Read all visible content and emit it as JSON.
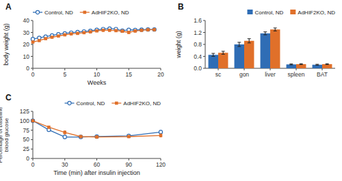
{
  "chart_data": [
    {
      "type": "line",
      "title": "A",
      "xlabel": "Weeks",
      "ylabel": "body weight (g)",
      "x": [
        0,
        1,
        2,
        3,
        4,
        5,
        6,
        7,
        8,
        9,
        10,
        11,
        12,
        13,
        14,
        15,
        16,
        17,
        18,
        19
      ],
      "xlim": [
        0,
        20
      ],
      "ylim": [
        0,
        40
      ],
      "xticks": [
        0,
        5,
        10,
        15,
        20
      ],
      "yticks": [
        0,
        10,
        20,
        30,
        40
      ],
      "grid": false,
      "legend": "upper left",
      "series": [
        {
          "name": "Control, ND",
          "marker": "circle",
          "values": [
            24.5,
            25.5,
            26.5,
            27.5,
            28.5,
            29.2,
            29.8,
            30.3,
            30.8,
            31.3,
            32.2,
            32.8,
            33.2,
            32.8,
            31.5,
            32.2,
            32.0,
            32.3,
            32.5,
            32.5
          ],
          "errors": [
            0.5,
            0.5,
            0.5,
            0.5,
            0.6,
            0.6,
            0.6,
            0.6,
            0.7,
            0.7,
            0.7,
            0.8,
            0.8,
            0.8,
            0.9,
            0.8,
            0.9,
            0.8,
            0.8,
            0.8
          ]
        },
        {
          "name": "AdHIF2KO, ND",
          "marker": "square",
          "values": [
            22.0,
            23.2,
            24.8,
            26.0,
            27.0,
            28.0,
            28.8,
            29.2,
            29.8,
            30.5,
            31.3,
            31.8,
            31.8,
            31.5,
            31.0,
            30.0,
            31.2,
            31.8,
            32.2,
            32.3
          ],
          "errors": [
            0.5,
            0.5,
            0.5,
            0.5,
            0.6,
            0.6,
            0.6,
            0.6,
            0.7,
            0.7,
            0.7,
            0.8,
            0.8,
            0.8,
            0.9,
            0.8,
            0.9,
            0.8,
            0.8,
            0.8
          ]
        }
      ]
    },
    {
      "type": "bar",
      "title": "B",
      "ylabel": "weight (g)",
      "categories": [
        "sc",
        "gon",
        "liver",
        "spleen",
        "BAT"
      ],
      "ylim": [
        0,
        1.6
      ],
      "yticks": [
        {
          "value": 0,
          "label": "0.0"
        },
        0.4,
        0.8,
        1.2,
        1.6
      ],
      "grid": false,
      "legend": "upper right",
      "series": [
        {
          "name": "Control, ND",
          "values": [
            0.45,
            0.8,
            1.17,
            0.13,
            0.12
          ],
          "errors": [
            0.05,
            0.07,
            0.05,
            0.015,
            0.015
          ]
        },
        {
          "name": "AdHIF2KO, ND",
          "values": [
            0.52,
            0.92,
            1.3,
            0.14,
            0.14
          ],
          "errors": [
            0.05,
            0.07,
            0.05,
            0.015,
            0.015
          ]
        }
      ]
    },
    {
      "type": "line",
      "title": "C",
      "xlabel": "Time (min) after insulin injection",
      "ylabel": "Percentage of baseline\nblood glucose",
      "x": [
        0,
        15,
        30,
        45,
        60,
        90,
        120
      ],
      "xlim": [
        0,
        120
      ],
      "ylim": [
        0,
        125
      ],
      "xticks": [
        0,
        30,
        60,
        90,
        120
      ],
      "yticks": [
        0,
        25,
        50,
        75,
        100,
        125
      ],
      "grid": false,
      "legend": "upper right",
      "series": [
        {
          "name": "Control, ND",
          "marker": "circle",
          "values": [
            100,
            76,
            57,
            57,
            58,
            60,
            70
          ],
          "errors": [
            0.5,
            3,
            4,
            3,
            3,
            3,
            5
          ]
        },
        {
          "name": "AdHIF2KO, ND",
          "marker": "square",
          "values": [
            100,
            83,
            69,
            58,
            57,
            58,
            61
          ],
          "errors": [
            0.5,
            3,
            4,
            3,
            3,
            3,
            4
          ]
        }
      ]
    }
  ]
}
